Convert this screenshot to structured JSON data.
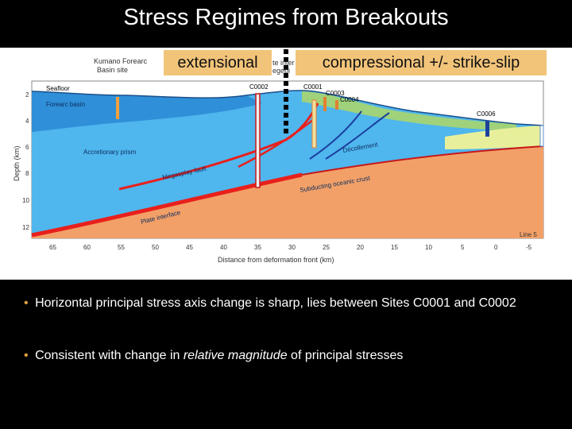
{
  "slide": {
    "title": "Stress Regimes from Breakouts"
  },
  "labels": {
    "extensional": "extensional",
    "compressional": "compressional +/- strike-slip",
    "hidden_fragment_1": "te inter",
    "hidden_fragment_2": "egebi"
  },
  "figure": {
    "site_title_1": "Kumano Forearc",
    "site_title_2": "Basin site",
    "seafloor": "Seafloor",
    "forearc_basin": "Forearc basin",
    "accretionary_prism": "Accretionary prism",
    "megasplay_fault": "Megasplay fault",
    "plate_interface": "Plate interface",
    "decollement": "Décollement",
    "subducting_crust": "Subducting oceanic crust",
    "line": "Line 5",
    "y_axis_label": "Depth (km)",
    "x_axis_label": "Distance from deformation front (km)",
    "y_ticks": [
      "2",
      "4",
      "6",
      "8",
      "10",
      "12"
    ],
    "x_ticks": [
      "65",
      "60",
      "55",
      "50",
      "45",
      "40",
      "35",
      "30",
      "25",
      "20",
      "15",
      "10",
      "5",
      "0",
      "-5"
    ],
    "sites": [
      "C0002",
      "C0001",
      "C0003",
      "C0004",
      "C0006"
    ]
  },
  "bullets": [
    {
      "marker": "•",
      "text": "Horizontal principal stress axis change is sharp, lies between Sites C0001 and C0002"
    },
    {
      "marker": "•",
      "pre": "Consistent with change in ",
      "em": "relative magnitude",
      "post": " of principal stresses"
    }
  ],
  "colors": {
    "water": "#ffffff",
    "prism": "#4fb6ee",
    "forearc_basin": "#2f8fd8",
    "slope_sediment": "#9fd27a",
    "trench_fill": "#e8ef9a",
    "oceanic_crust": "#f2a068",
    "fault": "#e8201c",
    "label_box": "#f2c47a"
  }
}
